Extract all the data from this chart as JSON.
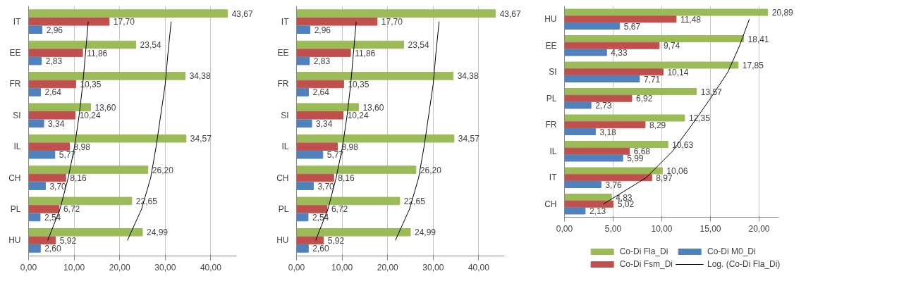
{
  "chart_data": [
    {
      "type": "bar",
      "orientation": "horizontal",
      "categories": [
        "IT",
        "EE",
        "FR",
        "SI",
        "IL",
        "CH",
        "PL",
        "HU"
      ],
      "xlim": [
        0,
        45.6
      ],
      "xticks": [
        {
          "value": 0,
          "label": "0,00"
        },
        {
          "value": 10,
          "label": "10,00"
        },
        {
          "value": 20,
          "label": "20,00"
        },
        {
          "value": 30,
          "label": "30,00"
        },
        {
          "value": 40,
          "label": "40,00"
        }
      ],
      "grid": "x",
      "legend": false,
      "series": [
        {
          "color": "#9bbb59",
          "values": [
            43.67,
            23.54,
            34.38,
            13.6,
            34.57,
            26.2,
            22.65,
            24.99
          ],
          "value_labels": [
            "43,67",
            "23,54",
            "34,38",
            "13,60",
            "34,57",
            "26,20",
            "22,65",
            "24,99"
          ]
        },
        {
          "color": "#c0504d",
          "values": [
            17.7,
            11.86,
            10.35,
            10.24,
            8.98,
            8.16,
            6.72,
            5.92
          ],
          "value_labels": [
            "17,70",
            "11,86",
            "10,35",
            "10,24",
            "8,98",
            "8,16",
            "6,72",
            "5,92"
          ]
        },
        {
          "color": "#4f81bd",
          "values": [
            2.96,
            2.83,
            2.64,
            3.34,
            5.77,
            3.7,
            2.54,
            2.6
          ],
          "value_labels": [
            "2,96",
            "2,83",
            "2,64",
            "3,34",
            "5,77",
            "3,70",
            "2,54",
            "2,60"
          ]
        },
        {
          "type": "line",
          "color": "#000000",
          "values": [
            13.1,
            12.5,
            11.9,
            11.1,
            10.1,
            8.7,
            6.9,
            4.2
          ]
        },
        {
          "type": "line",
          "color": "#000000",
          "values": [
            31.3,
            30.6,
            30.0,
            29.0,
            28.0,
            26.8,
            24.8,
            21.7
          ]
        }
      ]
    },
    {
      "type": "bar",
      "orientation": "horizontal",
      "categories": [
        "IT",
        "EE",
        "FR",
        "SI",
        "IL",
        "CH",
        "PL",
        "HU"
      ],
      "xlim": [
        0,
        45.6
      ],
      "xticks": [
        {
          "value": 0,
          "label": "0,00"
        },
        {
          "value": 10,
          "label": "10,00"
        },
        {
          "value": 20,
          "label": "20,00"
        },
        {
          "value": 30,
          "label": "30,00"
        },
        {
          "value": 40,
          "label": "40,00"
        }
      ],
      "grid": "x",
      "legend": false,
      "series": [
        {
          "color": "#9bbb59",
          "values": [
            43.67,
            23.54,
            34.38,
            13.6,
            34.57,
            26.2,
            22.65,
            24.99
          ],
          "value_labels": [
            "43,67",
            "23,54",
            "34,38",
            "13,60",
            "34,57",
            "26,20",
            "22,65",
            "24,99"
          ]
        },
        {
          "color": "#c0504d",
          "values": [
            17.7,
            11.86,
            10.35,
            10.24,
            8.98,
            8.16,
            6.72,
            5.92
          ],
          "value_labels": [
            "17,70",
            "11,86",
            "10,35",
            "10,24",
            "8,98",
            "8,16",
            "6,72",
            "5,92"
          ]
        },
        {
          "color": "#4f81bd",
          "values": [
            2.96,
            2.83,
            2.64,
            3.34,
            5.77,
            3.7,
            2.54,
            2.6
          ],
          "value_labels": [
            "2,96",
            "2,83",
            "2,64",
            "3,34",
            "5,77",
            "3,70",
            "2,54",
            "2,60"
          ]
        },
        {
          "type": "line",
          "color": "#000000",
          "values": [
            13.1,
            12.5,
            11.9,
            11.1,
            10.1,
            8.7,
            6.9,
            4.2
          ]
        },
        {
          "type": "line",
          "color": "#000000",
          "values": [
            31.3,
            30.6,
            30.0,
            29.0,
            28.0,
            26.8,
            24.8,
            21.7
          ]
        }
      ]
    },
    {
      "type": "bar",
      "orientation": "horizontal",
      "categories": [
        "HU",
        "EE",
        "SI",
        "PL",
        "FR",
        "IL",
        "IT",
        "CH"
      ],
      "xlim": [
        0,
        22
      ],
      "xticks": [
        {
          "value": 0,
          "label": "0,00"
        },
        {
          "value": 5,
          "label": "5,00"
        },
        {
          "value": 10,
          "label": "10,00"
        },
        {
          "value": 15,
          "label": "15,00"
        },
        {
          "value": 20,
          "label": "20,00"
        }
      ],
      "grid": "x",
      "legend": "bottom",
      "series": [
        {
          "name": "Co-Di Fla_Di",
          "color": "#9bbb59",
          "values": [
            20.89,
            18.41,
            17.85,
            13.57,
            12.35,
            10.63,
            10.06,
            4.83
          ],
          "value_labels": [
            "20,89",
            "18,41",
            "17,85",
            "13,57",
            "12,35",
            "10,63",
            "10,06",
            "4,83"
          ]
        },
        {
          "name": "Co-Di Fsm_Di",
          "color": "#c0504d",
          "values": [
            11.48,
            9.74,
            10.14,
            6.92,
            8.29,
            6.68,
            8.97,
            5.02
          ],
          "value_labels": [
            "11,48",
            "9,74",
            "10,14",
            "6,92",
            "8,29",
            "6,68",
            "8,97",
            "5,02"
          ]
        },
        {
          "name": "Co-Di M0_Di",
          "color": "#4f81bd",
          "values": [
            5.67,
            4.33,
            7.71,
            2.73,
            3.18,
            5.99,
            3.76,
            2.13
          ],
          "value_labels": [
            "5,67",
            "4,33",
            "7,71",
            "2,73",
            "3,18",
            "5,99",
            "3,76",
            "2,13"
          ]
        },
        {
          "type": "line",
          "name": "Log. (Co-Di Fla_Di)",
          "color": "#000000",
          "values": [
            19.0,
            18.0,
            16.8,
            15.0,
            13.1,
            11.1,
            8.4,
            4.0
          ]
        }
      ]
    }
  ]
}
